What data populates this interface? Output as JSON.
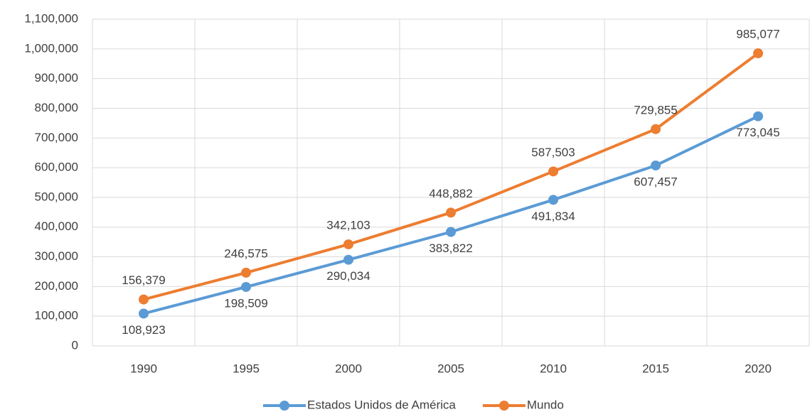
{
  "chart_data": {
    "type": "line",
    "categories": [
      "1990",
      "1995",
      "2000",
      "2005",
      "2010",
      "2015",
      "2020"
    ],
    "series": [
      {
        "name": "Estados Unidos de América",
        "color": "#5b9bd5",
        "values": [
          108923,
          198509,
          290034,
          383822,
          491834,
          607457,
          773045
        ],
        "value_labels": [
          "108,923",
          "198,509",
          "290,034",
          "383,822",
          "491,834",
          "607,457",
          "773,045"
        ]
      },
      {
        "name": "Mundo",
        "color": "#ed7d31",
        "values": [
          156379,
          246575,
          342103,
          448882,
          587503,
          729855,
          985077
        ],
        "value_labels": [
          "156,379",
          "246,575",
          "342,103",
          "448,882",
          "587,503",
          "729,855",
          "985,077"
        ]
      }
    ],
    "ylim": [
      0,
      1100000
    ],
    "yticks": [
      0,
      {
        "value": 100000,
        "label": "100,000"
      },
      {
        "value": 200000,
        "label": "200,000"
      },
      {
        "value": 300000,
        "label": "300,000"
      },
      {
        "value": 400000,
        "label": "400,000"
      },
      {
        "value": 500000,
        "label": "500,000"
      },
      {
        "value": 600000,
        "label": "600,000"
      },
      {
        "value": 700000,
        "label": "700,000"
      },
      {
        "value": 800000,
        "label": "800,000"
      },
      {
        "value": 900000,
        "label": "900,000"
      },
      {
        "value": 1000000,
        "label": "1,000,000"
      },
      {
        "value": 1100000,
        "label": "1,100,000"
      }
    ],
    "grid": true,
    "legend": "bottom"
  }
}
